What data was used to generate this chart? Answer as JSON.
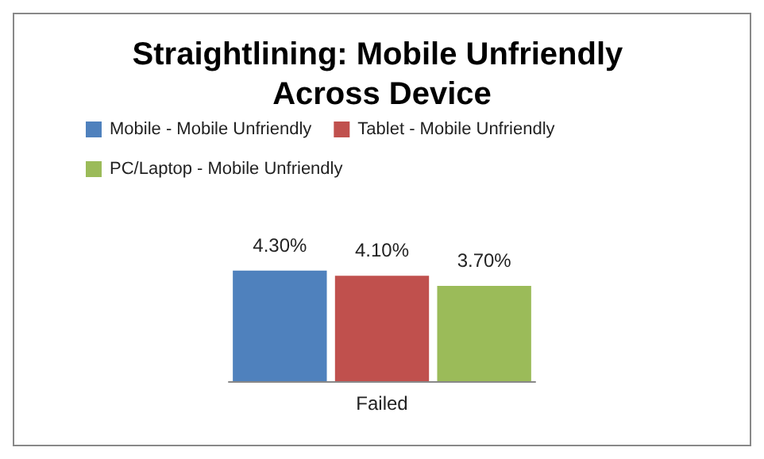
{
  "chart_data": {
    "type": "bar",
    "title": "Straightlining: Mobile Unfriendly Across Device",
    "categories": [
      null,
      "Failed",
      null
    ],
    "stacked": true,
    "series": [
      {
        "name": "Mobile - Mobile Unfriendly",
        "color": "#4f81bd",
        "values": [
          4.3,
          null,
          null
        ],
        "value_labels": [
          "4.30%",
          null,
          null
        ]
      },
      {
        "name": "Tablet - Mobile Unfriendly",
        "color": "#c0504d",
        "values": [
          null,
          4.1,
          null
        ],
        "value_labels": [
          null,
          "4.10%",
          null
        ]
      },
      {
        "name": "PC/Laptop - Mobile Unfriendly",
        "color": "#9bbb59",
        "values": [
          null,
          null,
          3.7
        ],
        "value_labels": [
          null,
          null,
          "3.70%"
        ]
      }
    ],
    "legend": "top"
  }
}
